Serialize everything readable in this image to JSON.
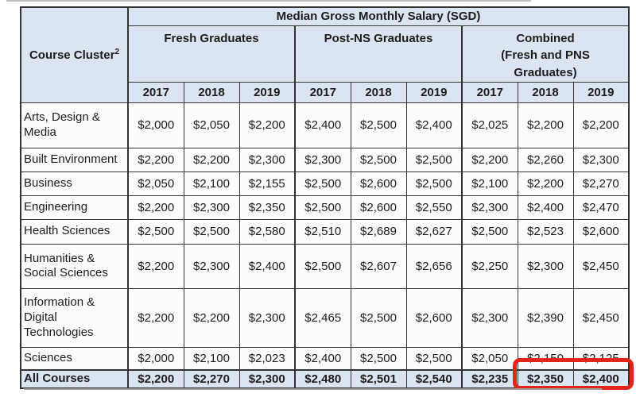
{
  "chart_data": {
    "type": "table",
    "title": "Median Gross Monthly Salary (SGD)",
    "row_header": "Course Cluster",
    "row_header_footnote": "2",
    "column_groups": [
      "Fresh Graduates",
      "Post-NS Graduates",
      "Combined (Fresh and PNS Graduates)"
    ],
    "combined_lines": [
      "Combined",
      "(Fresh and PNS",
      "Graduates)"
    ],
    "years": [
      "2017",
      "2018",
      "2019",
      "2017",
      "2018",
      "2019",
      "2017",
      "2018",
      "2019"
    ],
    "rows": [
      {
        "label": "Arts, Design & Media",
        "values": [
          "$2,000",
          "$2,050",
          "$2,200",
          "$2,400",
          "$2,500",
          "$2,400",
          "$2,025",
          "$2,200",
          "$2,200"
        ]
      },
      {
        "label": "Built Environment",
        "values": [
          "$2,200",
          "$2,200",
          "$2,300",
          "$2,300",
          "$2,500",
          "$2,500",
          "$2,200",
          "$2,260",
          "$2,300"
        ]
      },
      {
        "label": "Business",
        "values": [
          "$2,050",
          "$2,100",
          "$2,155",
          "$2,500",
          "$2,600",
          "$2,500",
          "$2,100",
          "$2,200",
          "$2,270"
        ]
      },
      {
        "label": "Engineering",
        "values": [
          "$2,200",
          "$2,300",
          "$2,350",
          "$2,500",
          "$2,600",
          "$2,550",
          "$2,300",
          "$2,400",
          "$2,470"
        ]
      },
      {
        "label": "Health Sciences",
        "values": [
          "$2,500",
          "$2,500",
          "$2,580",
          "$2,510",
          "$2,689",
          "$2,627",
          "$2,500",
          "$2,523",
          "$2,600"
        ]
      },
      {
        "label": "Humanities & Social Sciences",
        "values": [
          "$2,200",
          "$2,300",
          "$2,400",
          "$2,500",
          "$2,607",
          "$2,656",
          "$2,250",
          "$2,300",
          "$2,450"
        ]
      },
      {
        "label": "Information & Digital Technologies",
        "values": [
          "$2,200",
          "$2,200",
          "$2,300",
          "$2,465",
          "$2,500",
          "$2,600",
          "$2,300",
          "$2,390",
          "$2,450"
        ]
      },
      {
        "label": "Sciences",
        "values": [
          "$2,000",
          "$2,100",
          "$2,023",
          "$2,400",
          "$2,500",
          "$2,500",
          "$2,050",
          "$2,150",
          "$2,125"
        ]
      }
    ],
    "total_row": {
      "label": "All Courses",
      "values": [
        "$2,200",
        "$2,270",
        "$2,300",
        "$2,480",
        "$2,501",
        "$2,540",
        "$2,235",
        "$2,350",
        "$2,400"
      ]
    },
    "annotation": {
      "description": "Red box highlighting All Courses Combined 2018 and 2019 values",
      "highlighted_values": [
        "$2,350",
        "$2,400"
      ],
      "color": "#e2251b"
    },
    "colors": {
      "header_bg": "#dbe5f1",
      "cell_bg": "#fcfcfc",
      "border": "#333333",
      "highlight": "#e2251b"
    }
  }
}
